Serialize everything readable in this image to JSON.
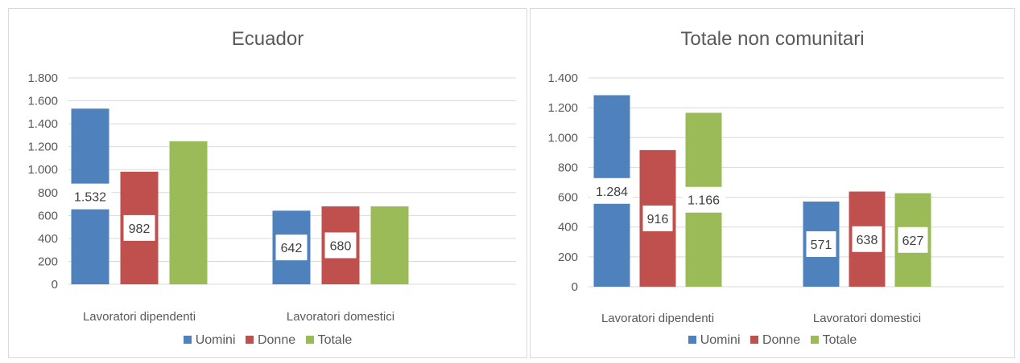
{
  "colors": {
    "Uomini": "#4f81bd",
    "Donne": "#c0504d",
    "Totale": "#9bbb59"
  },
  "chart_data": [
    {
      "type": "bar",
      "title": "Ecuador",
      "categories": [
        "Lavoratori dipendenti",
        "Lavoratori domestici"
      ],
      "series": [
        {
          "name": "Uomini",
          "values": [
            1532,
            642
          ]
        },
        {
          "name": "Donne",
          "values": [
            982,
            680
          ]
        },
        {
          "name": "Totale",
          "values": [
            1247,
            680
          ]
        }
      ],
      "data_labels": [
        {
          "series": "Uomini",
          "category": "Lavoratori dipendenti",
          "text": "1.532",
          "value": 1532
        },
        {
          "series": "Donne",
          "category": "Lavoratori dipendenti",
          "text": "982",
          "value": 982
        },
        {
          "series": "Uomini",
          "category": "Lavoratori domestici",
          "text": "642",
          "value": 642
        },
        {
          "series": "Donne",
          "category": "Lavoratori domestici",
          "text": "680",
          "value": 680
        }
      ],
      "ylim": [
        0,
        1800
      ],
      "yticks": [
        0,
        200,
        400,
        600,
        800,
        1000,
        1200,
        1400,
        1600,
        1800
      ],
      "ytick_labels": [
        "0",
        "200",
        "400",
        "600",
        "800",
        "1.000",
        "1.200",
        "1.400",
        "1.600",
        "1.800"
      ],
      "grid": true,
      "legend": "bottom"
    },
    {
      "type": "bar",
      "title": "Totale non comunitari",
      "categories": [
        "Lavoratori dipendenti",
        "Lavoratori domestici"
      ],
      "series": [
        {
          "name": "Uomini",
          "values": [
            1284,
            571
          ]
        },
        {
          "name": "Donne",
          "values": [
            916,
            638
          ]
        },
        {
          "name": "Totale",
          "values": [
            1166,
            627
          ]
        }
      ],
      "data_labels": [
        {
          "series": "Uomini",
          "category": "Lavoratori dipendenti",
          "text": "1.284",
          "value": 1284
        },
        {
          "series": "Donne",
          "category": "Lavoratori dipendenti",
          "text": "916",
          "value": 916
        },
        {
          "series": "Totale",
          "category": "Lavoratori dipendenti",
          "text": "1.166",
          "value": 1166
        },
        {
          "series": "Uomini",
          "category": "Lavoratori domestici",
          "text": "571",
          "value": 571
        },
        {
          "series": "Donne",
          "category": "Lavoratori domestici",
          "text": "638",
          "value": 638
        },
        {
          "series": "Totale",
          "category": "Lavoratori domestici",
          "text": "627",
          "value": 627
        }
      ],
      "ylim": [
        0,
        1400
      ],
      "yticks": [
        0,
        200,
        400,
        600,
        800,
        1000,
        1200,
        1400
      ],
      "ytick_labels": [
        "0",
        "200",
        "400",
        "600",
        "800",
        "1.000",
        "1.200",
        "1.400"
      ],
      "grid": true,
      "legend": "bottom"
    }
  ]
}
